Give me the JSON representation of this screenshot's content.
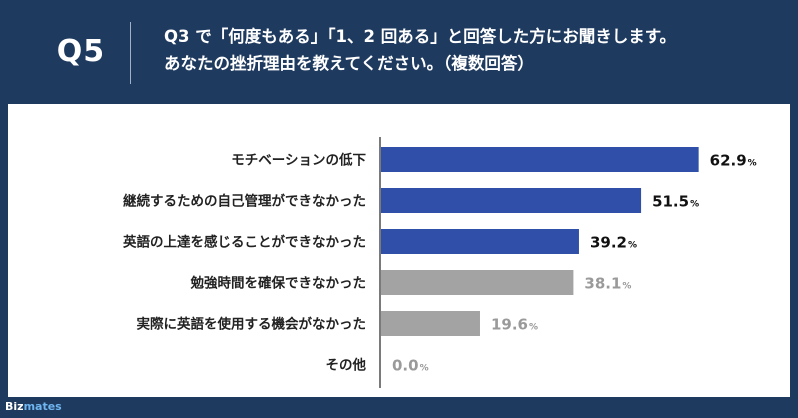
{
  "header": {
    "q_label": "Q5",
    "question_line1": "Q3 で「何度もある」「1、2 回ある」と回答した方にお聞きします。",
    "question_line2": "あなたの挫折理由を教えてください。（複数回答）"
  },
  "brand": {
    "name_a": "Biz",
    "name_b": "mates"
  },
  "colors": {
    "highlight": "#2f4fa8",
    "muted": "#a3a3a3",
    "muted_text": "#9a9a9a",
    "header_bg": "#1f3a5f"
  },
  "chart_data": {
    "type": "bar",
    "orientation": "horizontal",
    "unit": "%",
    "xlim": [
      0,
      100
    ],
    "categories": [
      "モチベーションの低下",
      "継続するための自己管理ができなかった",
      "英語の上達を感じることができなかった",
      "勉強時間を確保できなかった",
      "実際に英語を使用する機会がなかった",
      "その他"
    ],
    "values": [
      62.9,
      51.5,
      39.2,
      38.1,
      19.6,
      0.0
    ],
    "value_labels": [
      "62.9",
      "51.5",
      "39.2",
      "38.1",
      "19.6",
      "0.0"
    ],
    "highlighted": [
      true,
      true,
      true,
      false,
      false,
      false
    ],
    "grid": false,
    "legend": "none"
  }
}
